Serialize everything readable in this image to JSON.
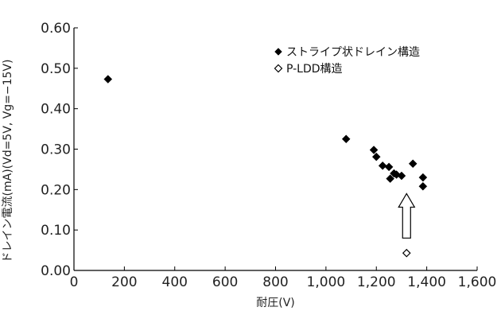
{
  "chart_data": {
    "type": "scatter",
    "title": "",
    "xlabel": "耐圧(V)",
    "ylabel": "ドレイン電流(mA)(Vd=5V, Vg=−15V)",
    "xlim": [
      0,
      1600
    ],
    "ylim": [
      0,
      0.6
    ],
    "x_ticks": [
      "0",
      "200",
      "400",
      "600",
      "800",
      "1,000",
      "1,200",
      "1,400",
      "1,600"
    ],
    "y_ticks": [
      "0.00",
      "0.10",
      "0.20",
      "0.30",
      "0.40",
      "0.50",
      "0.60"
    ],
    "grid": false,
    "legend_position": "top-right",
    "series": [
      {
        "name": "ストライプ状ドレイン構造",
        "marker": "filled-diamond",
        "color": "#000000",
        "points": [
          {
            "x": 135,
            "y": 0.473
          },
          {
            "x": 1080,
            "y": 0.325
          },
          {
            "x": 1190,
            "y": 0.298
          },
          {
            "x": 1200,
            "y": 0.281
          },
          {
            "x": 1225,
            "y": 0.259
          },
          {
            "x": 1250,
            "y": 0.256
          },
          {
            "x": 1255,
            "y": 0.227
          },
          {
            "x": 1270,
            "y": 0.24
          },
          {
            "x": 1280,
            "y": 0.237
          },
          {
            "x": 1300,
            "y": 0.234
          },
          {
            "x": 1345,
            "y": 0.264
          },
          {
            "x": 1385,
            "y": 0.23
          },
          {
            "x": 1385,
            "y": 0.208
          }
        ]
      },
      {
        "name": "P-LDD構造",
        "marker": "open-diamond",
        "color": "#000000",
        "points": [
          {
            "x": 1320,
            "y": 0.043
          }
        ]
      }
    ],
    "annotations": [
      {
        "type": "arrow-up",
        "x": 1320,
        "y_from": 0.08,
        "y_to": 0.19
      }
    ]
  }
}
